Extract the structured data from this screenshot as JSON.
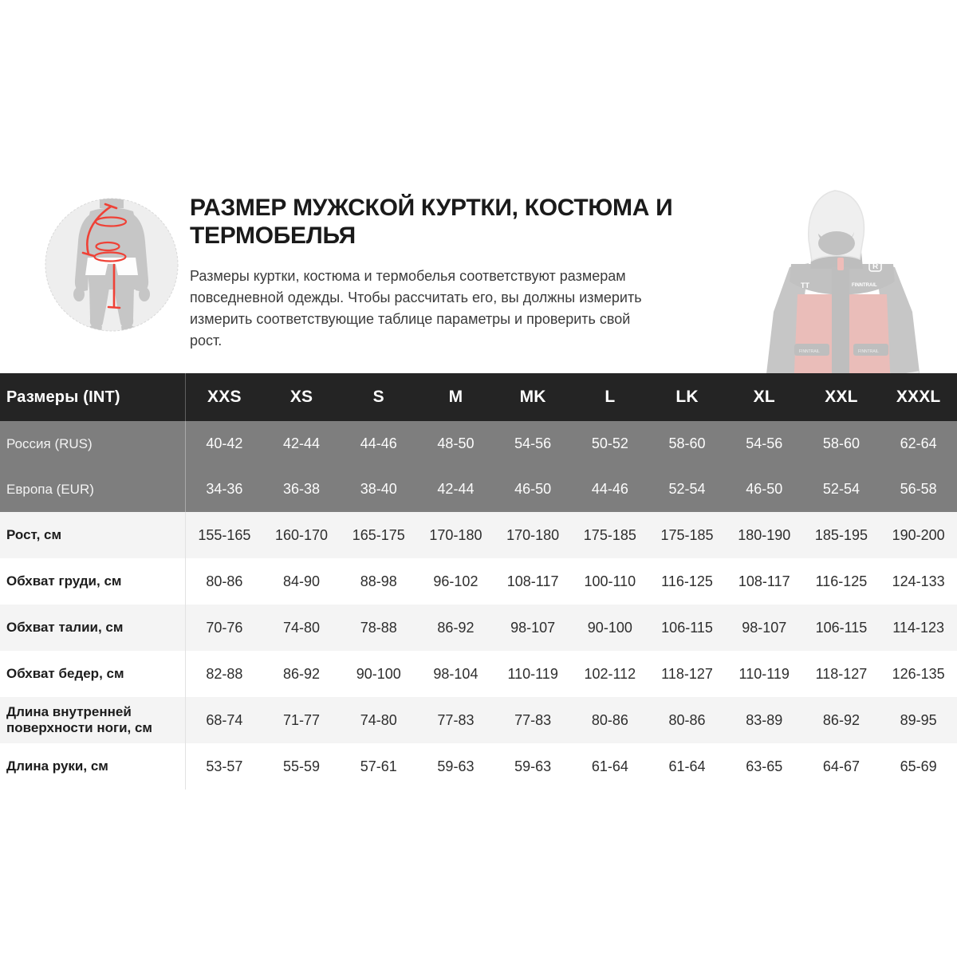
{
  "header": {
    "title": "РАЗМЕР МУЖСКОЙ КУРТКИ, КОСТЮМА И ТЕРМОБЕЛЬЯ",
    "title_lines": [
      "РАЗМЕР МУЖСКОЙ КУРТКИ, КОСТЮМА И",
      "ТЕРМОБЕЛЬЯ"
    ],
    "description": "Размеры куртки, костюма и термобелья соответствуют размерам повседневной одежды. Чтобы рассчитать его, вы должны измерить измерить соответствующие таблице параметры и проверить свой рост.",
    "description_lines": [
      "Размеры куртки, костюма и термобелья соответствуют размерам",
      "повседневной одежды. Чтобы рассчитать его, вы должны измерить",
      "измерить соответствующие таблице параметры и проверить свой",
      "рост."
    ]
  },
  "illustration": {
    "name": "body-measurement-diagram",
    "marks": [
      "back-length-curve",
      "chest-girth-ellipse",
      "waist-girth-ellipse",
      "hip-girth-ellipse",
      "inseam-line"
    ]
  },
  "product_image": {
    "name": "jacket-photo",
    "brand_marks": [
      "TT",
      "FINNTRAIL",
      "R"
    ]
  },
  "table": {
    "corner_label": "Размеры (INT)",
    "columns": [
      "XXS",
      "XS",
      "S",
      "M",
      "MK",
      "L",
      "LK",
      "XL",
      "XXL",
      "XXXL"
    ],
    "rows": [
      {
        "label": "Россия (RUS)",
        "variant": "gray",
        "values": [
          "40-42",
          "42-44",
          "44-46",
          "48-50",
          "54-56",
          "50-52",
          "58-60",
          "54-56",
          "58-60",
          "62-64"
        ]
      },
      {
        "label": "Европа (EUR)",
        "variant": "gray",
        "values": [
          "34-36",
          "36-38",
          "38-40",
          "42-44",
          "46-50",
          "44-46",
          "52-54",
          "46-50",
          "52-54",
          "56-58"
        ]
      },
      {
        "label": "Рост, см",
        "variant": "light",
        "values": [
          "155-165",
          "160-170",
          "165-175",
          "170-180",
          "170-180",
          "175-185",
          "175-185",
          "180-190",
          "185-195",
          "190-200"
        ]
      },
      {
        "label": "Обхват груди, см",
        "variant": "white",
        "values": [
          "80-86",
          "84-90",
          "88-98",
          "96-102",
          "108-117",
          "100-110",
          "116-125",
          "108-117",
          "116-125",
          "124-133"
        ]
      },
      {
        "label": "Обхват талии, см",
        "variant": "light",
        "values": [
          "70-76",
          "74-80",
          "78-88",
          "86-92",
          "98-107",
          "90-100",
          "106-115",
          "98-107",
          "106-115",
          "114-123"
        ]
      },
      {
        "label": "Обхват бедер, см",
        "variant": "white",
        "values": [
          "82-88",
          "86-92",
          "90-100",
          "98-104",
          "110-119",
          "102-112",
          "118-127",
          "110-119",
          "118-127",
          "126-135"
        ]
      },
      {
        "label": "Длина внутренней поверхности ноги, см",
        "variant": "light",
        "values": [
          "68-74",
          "71-77",
          "74-80",
          "77-83",
          "77-83",
          "80-86",
          "80-86",
          "83-89",
          "86-92",
          "89-95"
        ]
      },
      {
        "label": "Длина руки, см",
        "variant": "white",
        "values": [
          "53-57",
          "55-59",
          "57-61",
          "59-63",
          "59-63",
          "61-64",
          "61-64",
          "63-65",
          "64-67",
          "65-69"
        ]
      }
    ]
  },
  "colors": {
    "accent_red": "#ef4136",
    "table_header_bg": "#242424",
    "table_gray_row_bg": "#7e7e7e",
    "table_stripe_bg": "#f4f4f4",
    "jacket_red": "#c0392f",
    "jacket_dark": "#474747"
  }
}
